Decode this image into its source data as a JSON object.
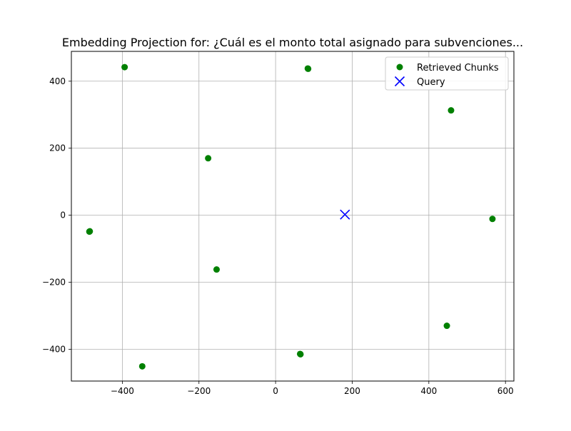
{
  "chart_data": {
    "type": "scatter",
    "title": "Embedding Projection for: ¿Cuál es el monto total asignado para subvenciones...",
    "xlabel": "",
    "ylabel": "",
    "xlim": [
      -533,
      622
    ],
    "ylim": [
      -495,
      489
    ],
    "grid": true,
    "legend_position": "top-right",
    "x_ticks": [
      -400,
      -200,
      0,
      200,
      400,
      600
    ],
    "y_ticks": [
      -400,
      -200,
      0,
      200,
      400
    ],
    "x_tick_labels": [
      "−400",
      "−200",
      "0",
      "200",
      "400",
      "600"
    ],
    "y_tick_labels": [
      "−400",
      "−200",
      "0",
      "200",
      "400"
    ],
    "series": [
      {
        "name": "Retrieved Chunks",
        "marker": "circle",
        "color": "#008000",
        "points": [
          {
            "x": -394,
            "y": 442
          },
          {
            "x": 84,
            "y": 438
          },
          {
            "x": 85,
            "y": 437
          },
          {
            "x": 458,
            "y": 313
          },
          {
            "x": -176,
            "y": 170
          },
          {
            "x": 566,
            "y": -11
          },
          {
            "x": -486,
            "y": -49
          },
          {
            "x": -485,
            "y": -48
          },
          {
            "x": -154,
            "y": -162
          },
          {
            "x": 447,
            "y": -330
          },
          {
            "x": 65,
            "y": -415
          },
          {
            "x": 64,
            "y": -414
          },
          {
            "x": -348,
            "y": -451
          }
        ]
      },
      {
        "name": "Query",
        "marker": "x",
        "color": "#0000ff",
        "points": [
          {
            "x": 181,
            "y": 2
          }
        ]
      }
    ]
  }
}
